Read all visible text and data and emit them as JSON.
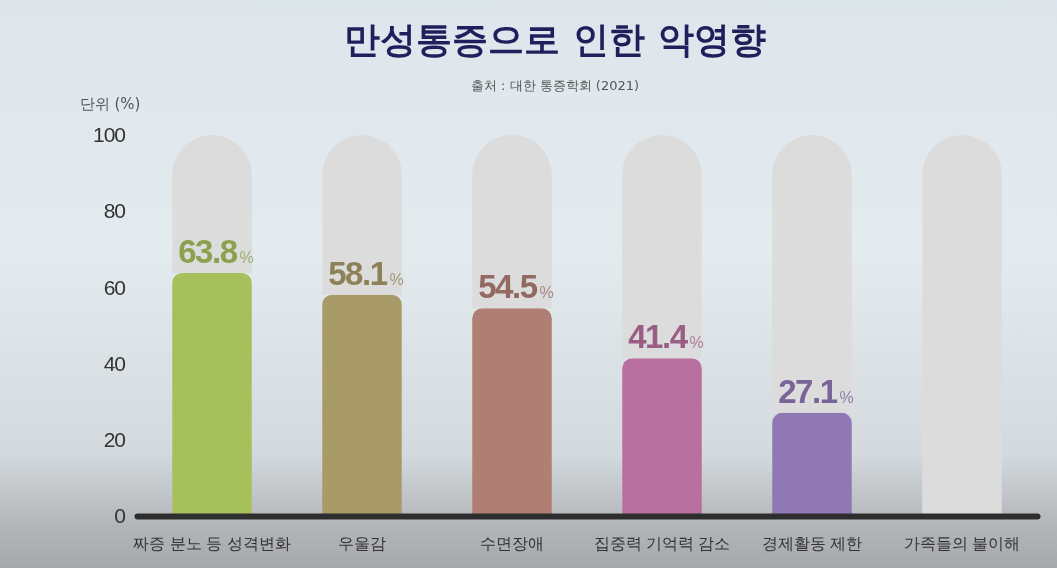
{
  "chart_data": {
    "type": "bar",
    "title": "만성통증으로 인한 악영향",
    "ylabel": "단위 (%)",
    "annotations": [
      "출처 : 대한 통증학회 (2021)"
    ],
    "categories": [
      "짜증 분노 등 성격변화",
      "우울감",
      "수면장애",
      "집중력 기억력 감소",
      "경제활동 제한",
      "가족들의 불이해"
    ],
    "stacked": true,
    "ylim": [
      0,
      100
    ],
    "yticks": [
      0,
      20,
      40,
      60,
      80,
      100
    ],
    "series": [
      {
        "colors": [
          "#a6c05c",
          "#a99b68",
          "#b07f74",
          "#b870a0",
          "#9078b4",
          null
        ],
        "values": [
          63.8,
          58.1,
          54.5,
          41.4,
          27.1,
          null
        ],
        "value_labels": [
          "63.8%",
          "58.1%",
          "54.5%",
          "41.4%",
          "27.1%",
          null
        ]
      },
      {
        "color": "#dcdcdc",
        "values": [
          36.2,
          41.9,
          45.5,
          58.6,
          72.9,
          100
        ]
      }
    ]
  }
}
